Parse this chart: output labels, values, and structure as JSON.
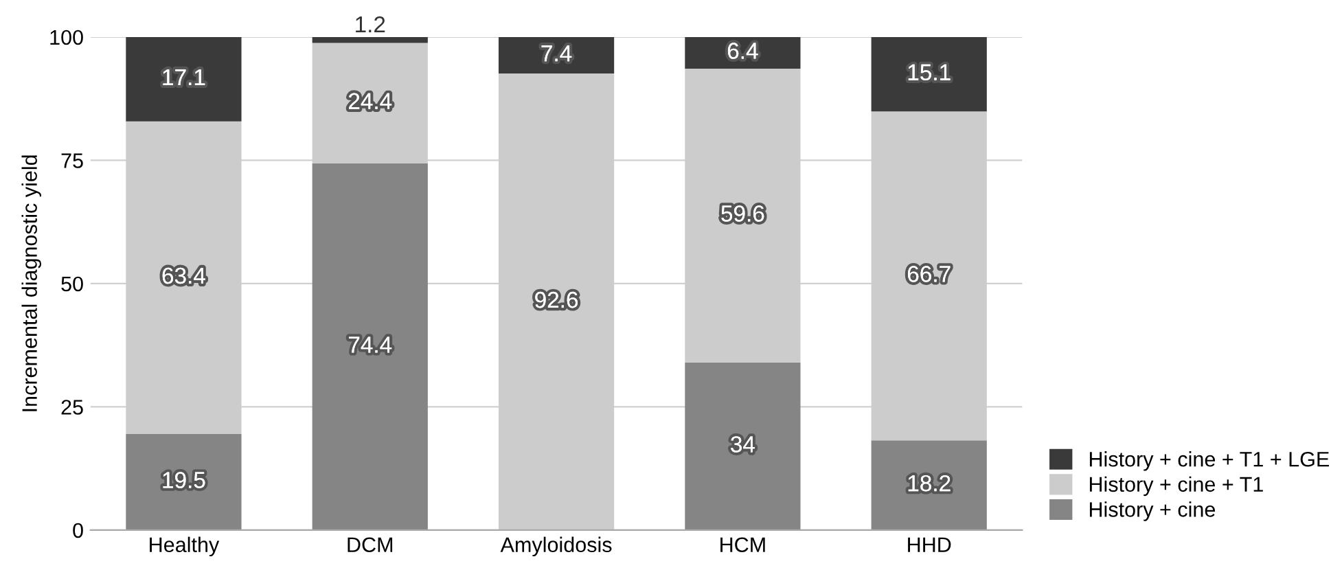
{
  "chart_data": {
    "type": "bar",
    "stacked": true,
    "ylabel": "Incremental diagnostic yield",
    "categories": [
      "Healthy",
      "DCM",
      "Amyloidosis",
      "HCM",
      "HHD"
    ],
    "series": [
      {
        "name": "History + cine",
        "color": "#858585",
        "values": [
          19.5,
          74.4,
          0,
          34,
          18.2
        ],
        "value_labels": [
          "19.5",
          "74.4",
          null,
          "34",
          "18.2"
        ]
      },
      {
        "name": "History + cine + T1",
        "color": "#cccccc",
        "values": [
          63.4,
          24.4,
          92.6,
          59.6,
          66.7
        ],
        "value_labels": [
          "63.4",
          "24.4",
          "92.6",
          "59.6",
          "66.7"
        ]
      },
      {
        "name": "History + cine + T1 + LGE",
        "color": "#3a3a3a",
        "values": [
          17.1,
          1.2,
          7.4,
          6.4,
          15.1
        ],
        "value_labels": [
          "17.1",
          "1.2",
          "7.4",
          "6.4",
          "15.1"
        ]
      }
    ],
    "ylim": [
      0,
      100
    ],
    "yticks": [
      0,
      25,
      50,
      75,
      100
    ],
    "grid": "y",
    "legend": "bottom right"
  }
}
